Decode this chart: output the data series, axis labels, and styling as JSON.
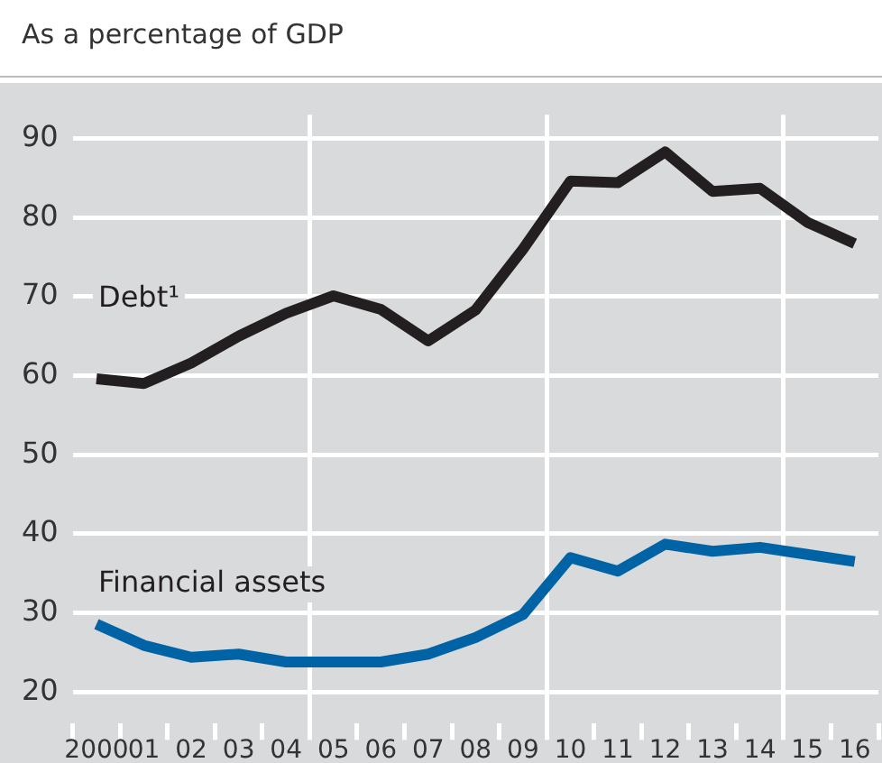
{
  "chart_data": {
    "type": "line",
    "subtitle": "As a percentage of GDP",
    "categories": [
      "2000",
      "01",
      "02",
      "03",
      "04",
      "05",
      "06",
      "07",
      "08",
      "09",
      "10",
      "11",
      "12",
      "13",
      "14",
      "15",
      "16"
    ],
    "series": [
      {
        "name": "Debt¹",
        "color": "#231f20",
        "values": [
          59.6,
          59.0,
          61.6,
          65.0,
          67.9,
          70.1,
          68.4,
          64.4,
          68.3,
          76.0,
          84.6,
          84.4,
          88.3,
          83.3,
          83.7,
          79.4,
          76.7
        ]
      },
      {
        "name": "Financial assets",
        "color": "#0063a6",
        "values": [
          28.6,
          25.9,
          24.4,
          24.8,
          23.8,
          23.8,
          23.8,
          24.8,
          26.9,
          29.8,
          37.0,
          35.3,
          38.7,
          37.8,
          38.3,
          37.4,
          36.5
        ]
      }
    ],
    "ylim": [
      16,
      93
    ],
    "yticks": [
      20,
      30,
      40,
      50,
      60,
      70,
      80,
      90
    ],
    "grid": true,
    "legend": false,
    "marker": "none",
    "line_style": "solid"
  }
}
